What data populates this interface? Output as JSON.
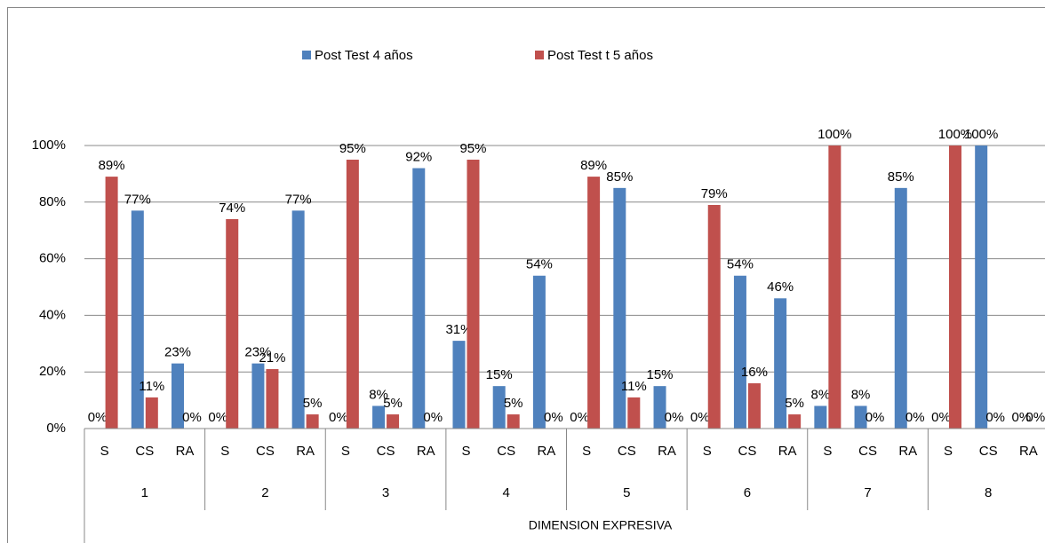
{
  "chart_data": {
    "type": "bar",
    "categories": [
      "S",
      "CS",
      "RA",
      "S",
      "CS",
      "RA",
      "S",
      "CS",
      "RA",
      "S",
      "CS",
      "RA",
      "S",
      "CS",
      "RA",
      "S",
      "CS",
      "RA",
      "S",
      "CS",
      "RA",
      "S",
      "CS",
      "RA"
    ],
    "groups": [
      "1",
      "2",
      "3",
      "4",
      "5",
      "6",
      "7",
      "8"
    ],
    "group_title": "DIMENSION EXPRESIVA",
    "series": [
      {
        "name": "Post Test 4 años",
        "color": "#4f81bd",
        "values": [
          0,
          77,
          23,
          0,
          23,
          77,
          0,
          8,
          92,
          31,
          15,
          54,
          0,
          85,
          15,
          0,
          54,
          46,
          8,
          8,
          85,
          0,
          100,
          0
        ],
        "value_labels": [
          "0%",
          "77%",
          "23%",
          "0%",
          "23%",
          "77%",
          "0%",
          "8%",
          "92%",
          "31%",
          "15%",
          "54%",
          "0%",
          "85%",
          "15%",
          "0%",
          "54%",
          "46%",
          "8%",
          "8%",
          "85%",
          "0%",
          "100%",
          "0%"
        ]
      },
      {
        "name": "Post Test t 5 años",
        "color": "#c0504d",
        "values": [
          89,
          11,
          0,
          74,
          21,
          5,
          95,
          5,
          0,
          95,
          5,
          0,
          89,
          11,
          0,
          79,
          16,
          5,
          100,
          0,
          0,
          100,
          0,
          0
        ],
        "value_labels": [
          "89%",
          "11%",
          "0%",
          "74%",
          "21%",
          "5%",
          "95%",
          "5%",
          "0%",
          "95%",
          "5%",
          "0%",
          "89%",
          "11%",
          "0%",
          "79%",
          "16%",
          "5%",
          "100%",
          "0%",
          "0%",
          "100%",
          "0%",
          "0%"
        ]
      }
    ],
    "ylim": [
      0,
      100
    ],
    "yticks": [
      {
        "value": 0,
        "label": "0%"
      },
      {
        "value": 20,
        "label": "20%"
      },
      {
        "value": 40,
        "label": "40%"
      },
      {
        "value": 60,
        "label": "60%"
      },
      {
        "value": 80,
        "label": "80%"
      },
      {
        "value": 100,
        "label": "100%"
      }
    ],
    "grid": true,
    "legend": "top"
  }
}
